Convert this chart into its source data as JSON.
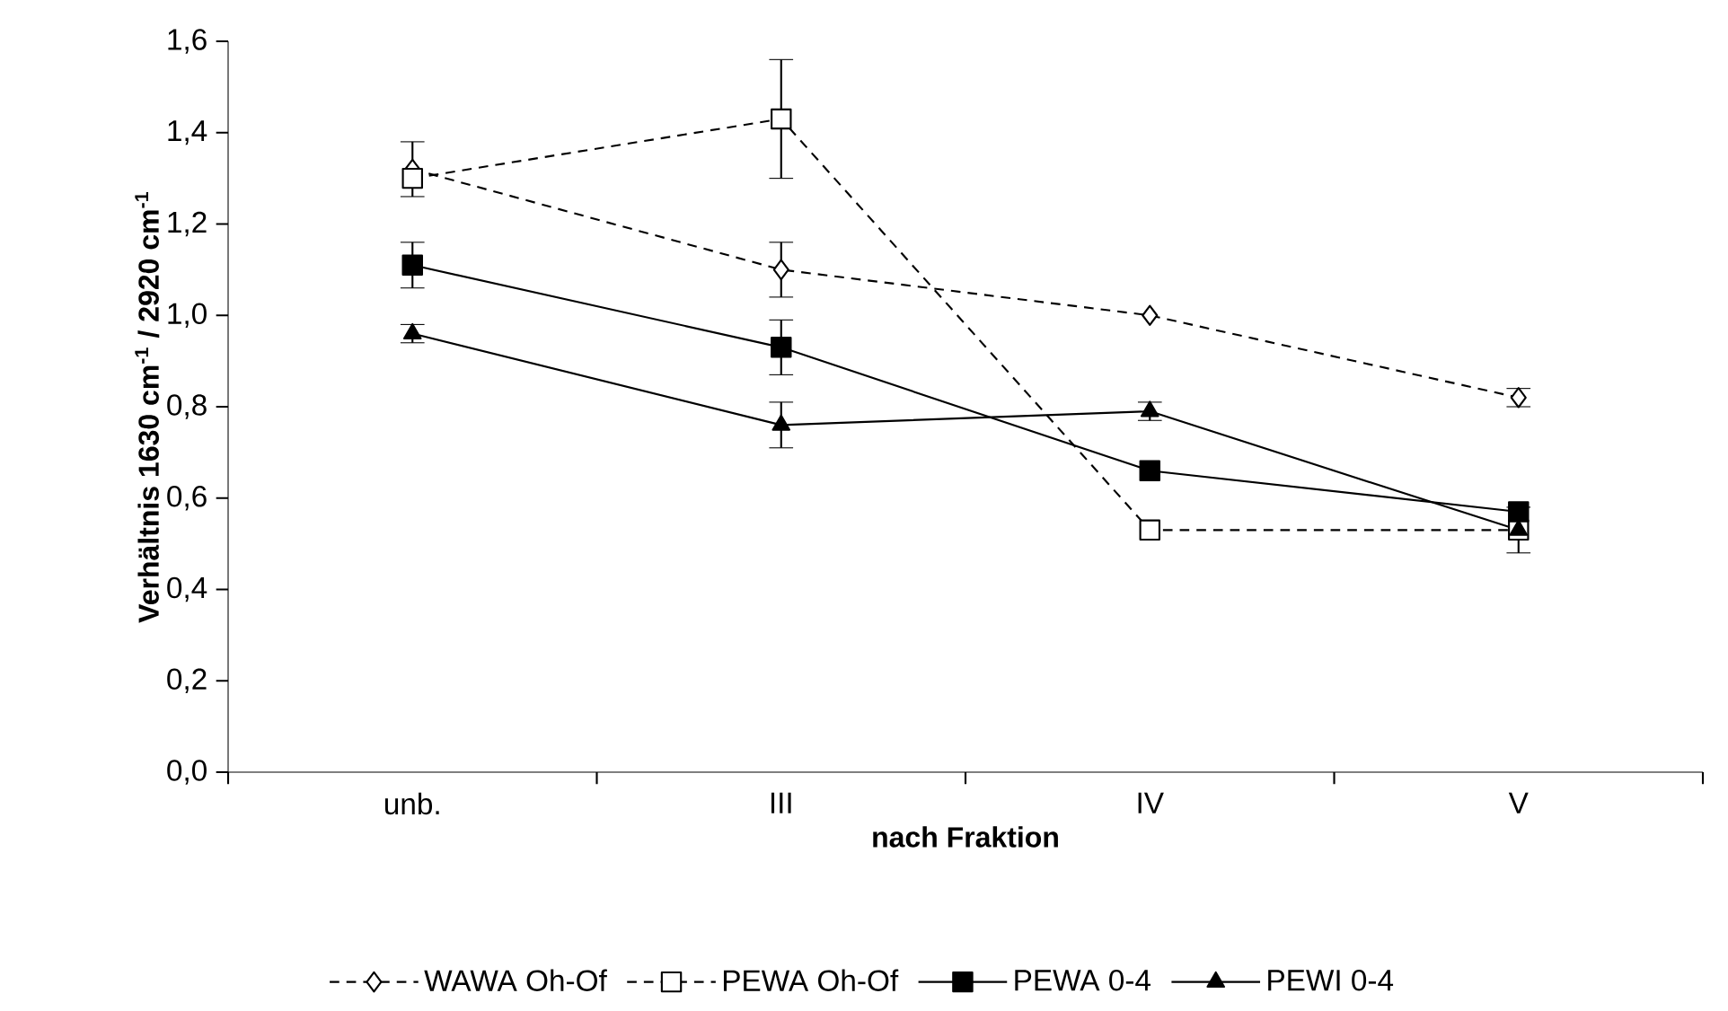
{
  "chart_data": {
    "type": "line",
    "xlabel": "nach Fraktion",
    "ylabel": "Verhältnis 1630 cm$^{-1}$ / 2920 cm$^{-1}$",
    "categories": [
      "unb.",
      "III",
      "IV",
      "V"
    ],
    "ylim": [
      0,
      1.6
    ],
    "yticks": [
      {
        "value": 0,
        "label": "0,0"
      },
      {
        "value": 0.2,
        "label": "0,2"
      },
      {
        "value": 0.4,
        "label": "0,4"
      },
      {
        "value": 0.6,
        "label": "0,6"
      },
      {
        "value": 0.8,
        "label": "0,8"
      },
      {
        "value": 1.0,
        "label": "1,0"
      },
      {
        "value": 1.2,
        "label": "1,2"
      },
      {
        "value": 1.4,
        "label": "1,4"
      },
      {
        "value": 1.6,
        "label": "1,6"
      }
    ],
    "legend": "bottom",
    "series": [
      {
        "name": "WAWA Oh-Of",
        "color": "#000000",
        "marker": "diamond",
        "line_style": "dashed",
        "values": [
          1.32,
          1.1,
          1.0,
          0.82
        ],
        "errors": [
          0.06,
          0.06,
          null,
          0.02
        ]
      },
      {
        "name": "PEWA Oh-Of",
        "color": "#000000",
        "marker": "square",
        "line_style": "dashed",
        "values": [
          1.3,
          1.43,
          0.53,
          0.53
        ],
        "errors": [
          null,
          0.13,
          null,
          null
        ]
      },
      {
        "name": "PEWA 0-4",
        "color": "#000000",
        "marker": "square",
        "line_style": "solid",
        "values": [
          1.11,
          0.93,
          0.66,
          0.57
        ],
        "errors": [
          0.05,
          0.06,
          null,
          null
        ]
      },
      {
        "name": "PEWI 0-4",
        "color": "#000000",
        "marker": "triangle",
        "line_style": "solid",
        "values": [
          0.96,
          0.76,
          0.79,
          0.53
        ],
        "errors": [
          0.02,
          0.05,
          0.02,
          0.05
        ]
      }
    ]
  }
}
